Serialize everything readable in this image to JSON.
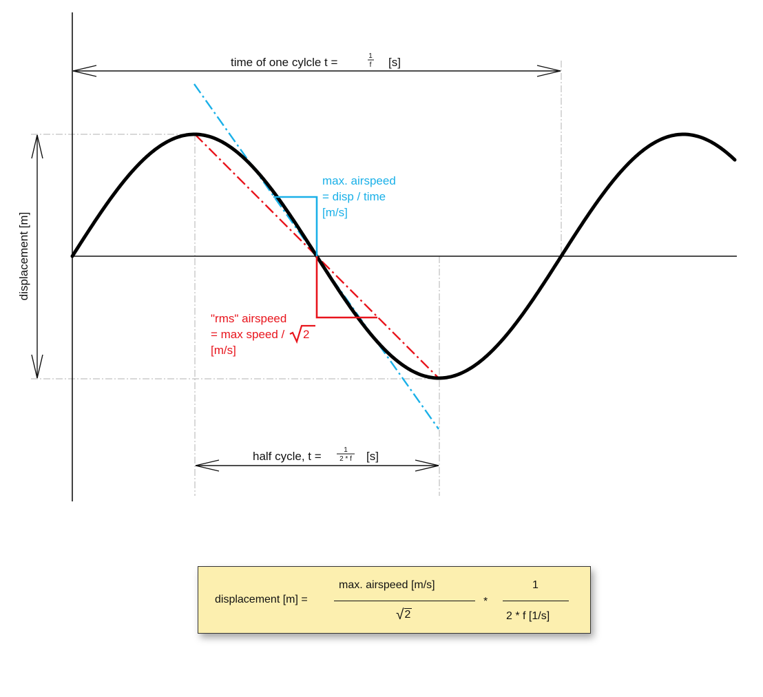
{
  "colors": {
    "background": "#ffffff",
    "curve": "#000000",
    "blue": "#1ab0e8",
    "red": "#e8141c",
    "box_fill": "#fcefaf",
    "guide": "#b0b0b0"
  },
  "labels": {
    "full_cycle": {
      "text": "time of one cylcle   t =",
      "num": "1",
      "den": "f",
      "unit": "[s]"
    },
    "half_cycle": {
      "text": "half cycle, t =",
      "num": "1",
      "den": "2 * f",
      "unit": "[s]"
    },
    "displacement": "displacement   [m]",
    "blue_lines": [
      "max. airspeed",
      "= disp / time",
      "[m/s]"
    ],
    "red_lines": [
      "\"rms\" airspeed",
      "= max speed /",
      "[m/s]"
    ],
    "red_sqrt_arg": "2"
  },
  "formula": {
    "lhs": "displacement [m] =",
    "frac1_num": "max. airspeed   [m/s]",
    "frac1_den_radicand": "2",
    "times": "*",
    "frac2_num": "1",
    "frac2_den": "2 * f   [1/s]"
  }
}
